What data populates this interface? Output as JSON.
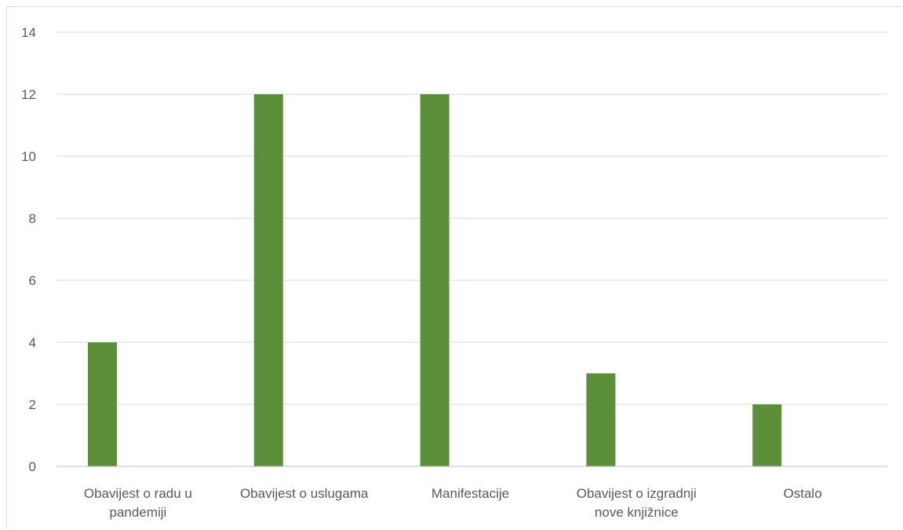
{
  "chart_data": {
    "type": "bar",
    "categories": [
      [
        "Obavijest o radu u",
        "pandemiji"
      ],
      [
        "Obavijest o uslugama"
      ],
      [
        "Manifestacije"
      ],
      [
        "Obavijest o izgradnji",
        "nove knjižnice"
      ],
      [
        "Ostalo"
      ]
    ],
    "series": [
      {
        "values": [
          4,
          12,
          12,
          3,
          2
        ],
        "color": "#5b8f3a"
      }
    ],
    "ylim": [
      0,
      14
    ],
    "yticks": [
      0,
      2,
      4,
      6,
      8,
      10,
      12,
      14
    ],
    "grid": true,
    "legend": "none",
    "title": "",
    "xlabel": "",
    "ylabel": ""
  }
}
